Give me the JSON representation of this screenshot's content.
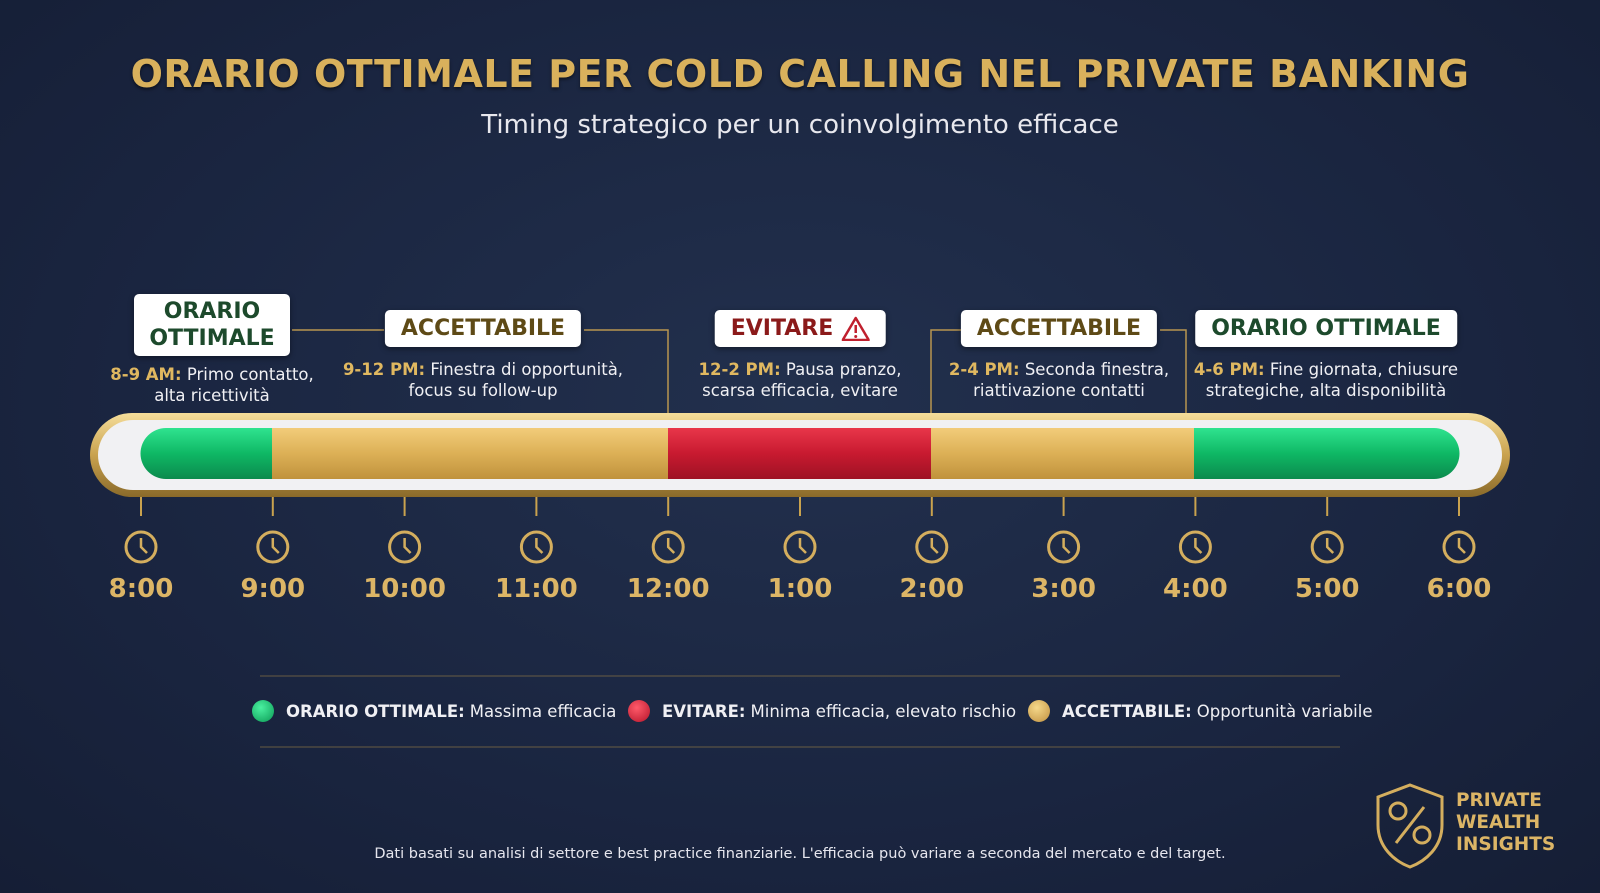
{
  "header": {
    "title": "ORARIO OTTIMALE PER COLD CALLING NEL PRIVATE BANKING",
    "subtitle": "Timing strategico per un coinvolgimento efficace"
  },
  "segments": [
    {
      "badge": "ORARIO OTTIMALE",
      "range": "8-9 AM:",
      "text": "Primo contatto, alta ricettività"
    },
    {
      "badge": "ACCETTABILE",
      "range": "9-12 PM:",
      "text": "Finestra di opportunità, focus su follow-up"
    },
    {
      "badge": "EVITARE",
      "range": "12-2 PM:",
      "text": "Pausa pranzo, scarsa efficacia, evitare"
    },
    {
      "badge": "ACCETTABILE",
      "range": "2-4 PM:",
      "text": "Seconda finestra, riattivazione contatti"
    },
    {
      "badge": "ORARIO OTTIMALE",
      "range": "4-6 PM:",
      "text": "Fine giornata, chiusure strategiche, alta disponibilità"
    }
  ],
  "times": [
    "8:00",
    "9:00",
    "10:00",
    "11:00",
    "12:00",
    "1:00",
    "2:00",
    "3:00",
    "4:00",
    "5:00",
    "6:00"
  ],
  "legend": [
    {
      "label": "ORARIO OTTIMALE:",
      "text": "Massima efficacia"
    },
    {
      "label": "EVITARE:",
      "text": "Minima efficacia, elevato rischio"
    },
    {
      "label": "ACCETTABILE:",
      "text": "Opportunità variabile"
    }
  ],
  "footer": "Dati basati su analisi di settore e best practice finanziarie. L'efficacia può variare a seconda del mercato e del target.",
  "logo": [
    "PRIVATE",
    "WEALTH",
    "INSIGHTS"
  ]
}
